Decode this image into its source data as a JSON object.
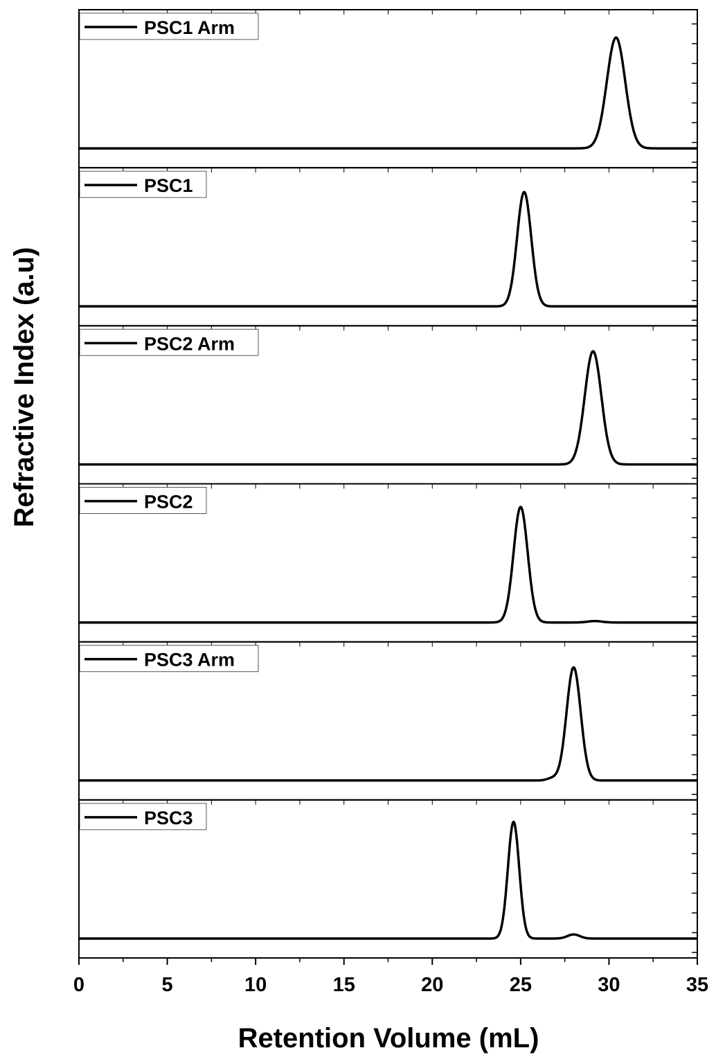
{
  "chart_data": {
    "type": "line",
    "xlabel": "Retention Volume (mL)",
    "ylabel": "Refractive Index (a.u)",
    "xlim": [
      0,
      35
    ],
    "x_ticks": [
      "0",
      "5",
      "10",
      "15",
      "20",
      "25",
      "30",
      "35"
    ],
    "grid": false,
    "legend_position": "top-left",
    "line_color": "#000000",
    "series": [
      {
        "name": "PSC1 Arm",
        "peaks": [
          {
            "center": 30.4,
            "height": 0.94,
            "sigma": 0.52
          }
        ]
      },
      {
        "name": "PSC1",
        "peaks": [
          {
            "center": 25.2,
            "height": 0.97,
            "sigma": 0.4
          }
        ]
      },
      {
        "name": "PSC2 Arm",
        "peaks": [
          {
            "center": 29.1,
            "height": 0.96,
            "sigma": 0.47
          }
        ]
      },
      {
        "name": "PSC2",
        "peaks": [
          {
            "center": 25.0,
            "height": 0.98,
            "sigma": 0.4
          },
          {
            "center": 29.2,
            "height": 0.012,
            "sigma": 0.4
          }
        ]
      },
      {
        "name": "PSC3 Arm",
        "peaks": [
          {
            "center": 28.0,
            "height": 0.96,
            "sigma": 0.4
          },
          {
            "center": 26.8,
            "height": 0.02,
            "sigma": 0.3
          }
        ]
      },
      {
        "name": "PSC3",
        "peaks": [
          {
            "center": 24.6,
            "height": 0.99,
            "sigma": 0.32
          },
          {
            "center": 28.0,
            "height": 0.035,
            "sigma": 0.35
          }
        ]
      }
    ]
  }
}
